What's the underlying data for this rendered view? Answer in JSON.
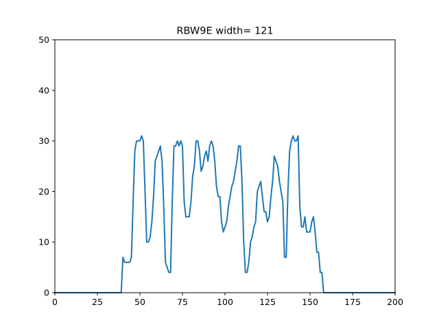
{
  "chart_data": {
    "type": "line",
    "title": "RBW9E width= 121",
    "xlabel": "",
    "ylabel": "",
    "xlim": [
      0,
      200
    ],
    "ylim": [
      0,
      50
    ],
    "xticks": [
      0,
      25,
      50,
      75,
      100,
      125,
      150,
      175,
      200
    ],
    "yticks": [
      0,
      10,
      20,
      30,
      40,
      50
    ],
    "grid": false,
    "legend": "none",
    "series": [
      {
        "color": "#1f77b4",
        "x": [
          0,
          39,
          40,
          41,
          42,
          43,
          44,
          45,
          46,
          47,
          48,
          49,
          50,
          51,
          52,
          53,
          54,
          55,
          56,
          57,
          58,
          59,
          60,
          61,
          62,
          63,
          64,
          65,
          66,
          67,
          68,
          69,
          70,
          71,
          72,
          73,
          74,
          75,
          76,
          77,
          78,
          79,
          80,
          81,
          82,
          83,
          84,
          85,
          86,
          87,
          88,
          89,
          90,
          91,
          92,
          93,
          94,
          95,
          96,
          97,
          98,
          99,
          100,
          101,
          102,
          103,
          104,
          105,
          106,
          107,
          108,
          109,
          110,
          111,
          112,
          113,
          114,
          115,
          116,
          117,
          118,
          119,
          120,
          121,
          122,
          123,
          124,
          125,
          126,
          127,
          128,
          129,
          130,
          131,
          132,
          133,
          134,
          135,
          136,
          137,
          138,
          139,
          140,
          141,
          142,
          143,
          144,
          145,
          146,
          147,
          148,
          149,
          150,
          151,
          152,
          153,
          154,
          155,
          156,
          157,
          158,
          159,
          160,
          200
        ],
        "y": [
          0,
          0,
          7,
          6,
          6,
          6,
          6,
          7,
          18,
          28,
          30,
          30,
          30,
          31,
          30,
          20,
          10,
          10,
          11,
          14,
          19,
          26,
          27,
          28,
          29,
          26,
          17,
          6,
          5,
          4,
          4,
          18,
          29,
          29,
          30,
          29,
          30,
          29,
          18,
          15,
          15,
          15,
          18,
          23,
          25,
          30,
          30,
          28,
          24,
          25,
          27,
          28,
          26,
          29,
          30,
          29,
          26,
          21,
          19,
          19,
          14,
          12,
          13,
          14,
          17,
          19,
          21,
          22,
          24,
          26,
          29,
          29,
          22,
          10,
          4,
          4,
          6,
          10,
          11,
          13,
          14,
          20,
          21,
          22,
          19,
          16,
          16,
          14,
          15,
          19,
          22,
          27,
          26,
          25,
          22,
          20,
          18,
          7,
          7,
          20,
          28,
          30,
          31,
          30,
          30,
          31,
          17,
          13,
          13,
          15,
          12,
          12,
          12,
          14,
          15,
          12,
          8,
          8,
          4,
          4,
          0,
          0,
          0,
          0
        ]
      }
    ]
  }
}
